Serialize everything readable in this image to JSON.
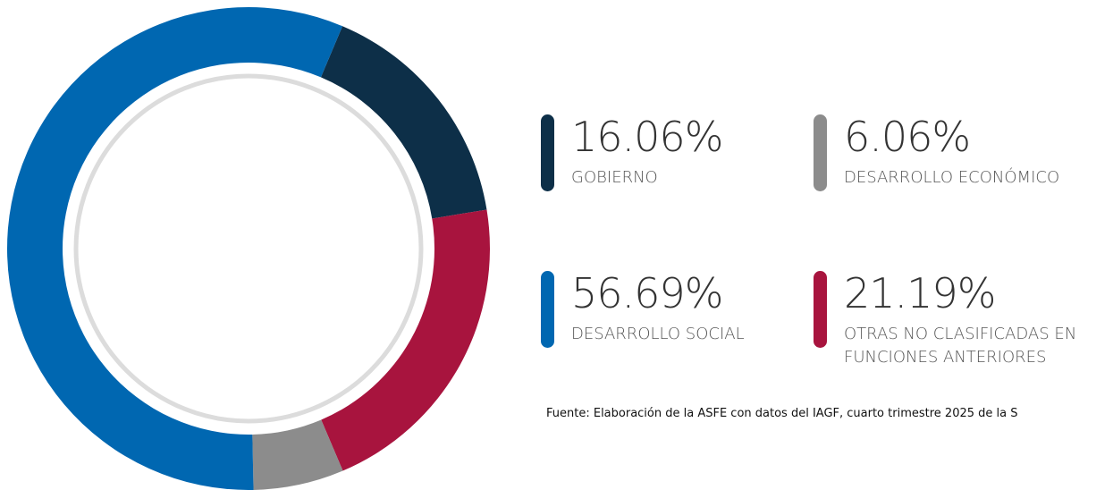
{
  "chart_data": {
    "type": "donut",
    "categories": [
      "GOBIERNO",
      "OTRAS NO CLASIFICADAS EN FUNCIONES ANTERIORES",
      "DESARROLLO ECONÓMICO",
      "DESARROLLO SOCIAL"
    ],
    "values": [
      16.06,
      21.19,
      6.06,
      56.69
    ],
    "value_labels": [
      "16.06%",
      "21.19%",
      "6.06%",
      "56.69%"
    ],
    "colors": [
      "#0d2f48",
      "#a8143e",
      "#8c8c8c",
      "#0067b1"
    ],
    "source": "Fuente: Elaboración de la ASFE con datos del IAGF, cuarto trimestre 2025 de la S"
  }
}
